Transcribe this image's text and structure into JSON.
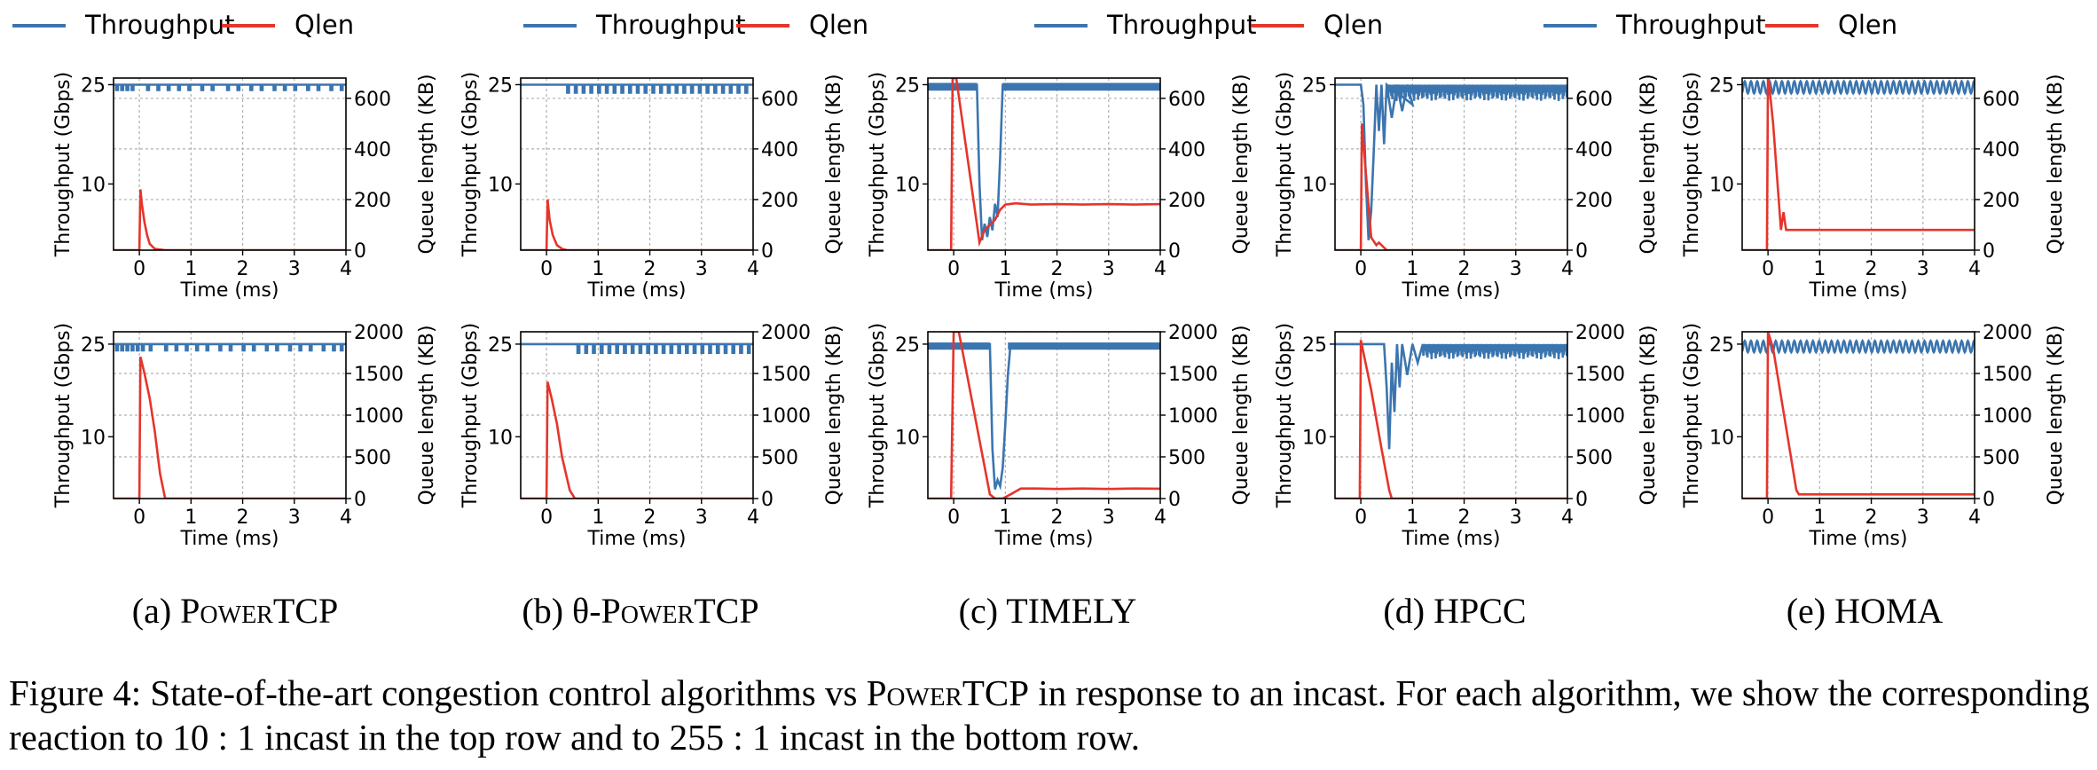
{
  "legend": {
    "items": [
      {
        "label": "Throughput",
        "color": "#3b75af"
      },
      {
        "label": "Qlen",
        "color": "#e5352b"
      },
      {
        "label": "Throughput",
        "color": "#3b75af"
      },
      {
        "label": "Qlen",
        "color": "#e5352b"
      },
      {
        "label": "Throughput",
        "color": "#3b75af"
      },
      {
        "label": "Qlen",
        "color": "#e5352b"
      },
      {
        "label": "Throughput",
        "color": "#3b75af"
      },
      {
        "label": "Qlen",
        "color": "#e5352b"
      }
    ]
  },
  "subcaptions": [
    {
      "prefix": "(a) ",
      "smallcaps": "PowerTCP",
      "suffix": ""
    },
    {
      "prefix": "(b) θ-",
      "smallcaps": "PowerTCP",
      "suffix": ""
    },
    {
      "prefix": "(c) TIMELY",
      "smallcaps": "",
      "suffix": ""
    },
    {
      "prefix": "(d) HPCC",
      "smallcaps": "",
      "suffix": ""
    },
    {
      "prefix": "(e) HOMA",
      "smallcaps": "",
      "suffix": ""
    }
  ],
  "caption": {
    "part1": "Figure 4: State-of-the-art congestion control algorithms vs ",
    "smallcaps": "PowerTCP",
    "part2": " in response to an incast. For each algorithm, we show the corresponding reaction to 10 : 1 incast in the top row and to 255 : 1 incast in the bottom row."
  },
  "axes_text": {
    "xlabel": "Time (ms)",
    "ylabel_left": "Throughput (Gbps)",
    "ylabel_right": "Queue length (KB)"
  },
  "colors": {
    "throughput": "#3b75af",
    "qlen": "#e5352b",
    "grid": "#b0b0b0"
  },
  "chart_data": [
    {
      "type": "line",
      "algorithm": "PowerTCP",
      "row": "top",
      "incast": "10:1",
      "xlabel": "Time (ms)",
      "ylabel_left": "Throughput (Gbps)",
      "ylabel_right": "Queue length (KB)",
      "xlim": [
        -0.5,
        4
      ],
      "xticks": [
        0,
        1,
        2,
        3,
        4
      ],
      "ylim_left": [
        0,
        26
      ],
      "yticks_left": [
        10,
        25
      ],
      "ylim_right": [
        0,
        680
      ],
      "yticks_right": [
        0,
        200,
        400,
        600
      ],
      "grid": true,
      "throughput": {
        "pattern": "flat-dips",
        "x": [
          -0.5,
          4
        ],
        "base": 25,
        "low": 24.2,
        "dip_x": [
          -0.45,
          -0.35,
          -0.25,
          -0.15,
          0.15,
          0.35,
          0.55,
          0.75,
          0.95,
          1.2,
          1.4,
          1.7,
          1.9,
          2.15,
          2.35,
          2.6,
          2.8,
          3.0,
          3.25,
          3.45,
          3.7,
          3.9
        ]
      },
      "qlen": {
        "x": [
          -0.5,
          0,
          0.02,
          0.05,
          0.1,
          0.15,
          0.2,
          0.3,
          0.5,
          4
        ],
        "y": [
          0,
          0,
          240,
          180,
          110,
          60,
          25,
          5,
          0,
          0
        ]
      }
    },
    {
      "type": "line",
      "algorithm": "θ-PowerTCP",
      "row": "top",
      "incast": "10:1",
      "xlabel": "Time (ms)",
      "ylabel_left": "Throughput (Gbps)",
      "ylabel_right": "Queue length (KB)",
      "xlim": [
        -0.5,
        4
      ],
      "xticks": [
        0,
        1,
        2,
        3,
        4
      ],
      "ylim_left": [
        0,
        26
      ],
      "yticks_left": [
        10,
        25
      ],
      "ylim_right": [
        0,
        680
      ],
      "yticks_right": [
        0,
        200,
        400,
        600
      ],
      "grid": true,
      "throughput": {
        "pattern": "flat-dips",
        "x": [
          -0.5,
          4
        ],
        "base": 25,
        "low": 23.8,
        "dip_x": [
          0.4,
          0.55,
          0.7,
          0.85,
          1.0,
          1.15,
          1.3,
          1.45,
          1.6,
          1.75,
          1.9,
          2.05,
          2.2,
          2.35,
          2.5,
          2.65,
          2.8,
          2.95,
          3.1,
          3.25,
          3.4,
          3.55,
          3.7,
          3.85
        ]
      },
      "qlen": {
        "x": [
          -0.5,
          0,
          0.02,
          0.06,
          0.12,
          0.2,
          0.3,
          0.4,
          4
        ],
        "y": [
          0,
          0,
          200,
          120,
          60,
          20,
          5,
          0,
          0
        ]
      }
    },
    {
      "type": "line",
      "algorithm": "TIMELY",
      "row": "top",
      "incast": "10:1",
      "xlabel": "Time (ms)",
      "ylabel_left": "Throughput (Gbps)",
      "ylabel_right": "Queue length (KB)",
      "xlim": [
        -0.5,
        4
      ],
      "xticks": [
        0,
        1,
        2,
        3,
        4
      ],
      "ylim_left": [
        0,
        26
      ],
      "yticks_left": [
        10,
        25
      ],
      "ylim_right": [
        0,
        680
      ],
      "yticks_right": [
        0,
        200,
        400,
        600
      ],
      "grid": true,
      "throughput": {
        "pattern": "band",
        "x": [
          -0.5,
          0.45,
          0.5,
          0.55,
          0.6,
          0.65,
          0.7,
          0.75,
          0.8,
          0.85,
          0.9,
          0.95,
          1.0,
          4
        ],
        "y": [
          25,
          25,
          10,
          1.5,
          4,
          2,
          5,
          3,
          7,
          5,
          14,
          25,
          25,
          25
        ],
        "band": 0.9
      },
      "qlen": {
        "x": [
          -0.5,
          -0.05,
          -0.02,
          0.0,
          0.05,
          0.5,
          0.6,
          0.7,
          0.8,
          0.9,
          1.0,
          1.2,
          1.5,
          2,
          2.5,
          3,
          3.5,
          4
        ],
        "y": [
          0,
          0,
          680,
          680,
          680,
          30,
          80,
          100,
          120,
          160,
          180,
          185,
          180,
          182,
          180,
          182,
          180,
          182
        ]
      }
    },
    {
      "type": "line",
      "algorithm": "HPCC",
      "row": "top",
      "incast": "10:1",
      "xlabel": "Time (ms)",
      "ylabel_left": "Throughput (Gbps)",
      "ylabel_right": "Queue length (KB)",
      "xlim": [
        -0.5,
        4
      ],
      "xticks": [
        0,
        1,
        2,
        3,
        4
      ],
      "ylim_left": [
        0,
        26
      ],
      "yticks_left": [
        10,
        25
      ],
      "ylim_right": [
        0,
        680
      ],
      "yticks_right": [
        0,
        200,
        400,
        600
      ],
      "grid": true,
      "throughput": {
        "pattern": "oscillating",
        "x": [
          -0.5,
          0.0,
          0.05,
          0.1,
          0.15,
          0.2,
          0.25,
          0.3,
          0.35,
          0.4,
          0.45,
          0.5,
          0.6,
          0.7,
          0.8,
          0.9,
          1.0,
          4
        ],
        "y": [
          25,
          25,
          22,
          10,
          1.5,
          6,
          15,
          25,
          18,
          25,
          16,
          25,
          20,
          25,
          21,
          25,
          22,
          25
        ],
        "osc_low": 22.5,
        "osc_high": 25,
        "osc_from": 0.5
      },
      "qlen": {
        "x": [
          -0.5,
          0,
          0.02,
          0.1,
          0.2,
          0.3,
          0.35,
          0.5,
          4
        ],
        "y": [
          0,
          0,
          500,
          300,
          50,
          20,
          30,
          0,
          0
        ]
      }
    },
    {
      "type": "line",
      "algorithm": "HOMA",
      "row": "top",
      "incast": "10:1",
      "xlabel": "Time (ms)",
      "ylabel_left": "Throughput (Gbps)",
      "ylabel_right": "Queue length (KB)",
      "xlim": [
        -0.5,
        4
      ],
      "xticks": [
        0,
        1,
        2,
        3,
        4
      ],
      "ylim_left": [
        0,
        26
      ],
      "yticks_left": [
        10,
        25
      ],
      "ylim_right": [
        0,
        680
      ],
      "yticks_right": [
        0,
        200,
        400,
        600
      ],
      "grid": true,
      "throughput": {
        "pattern": "sine",
        "x": [
          -0.5,
          4
        ],
        "base": 24.6,
        "amp": 0.9,
        "period": 0.12
      },
      "qlen": {
        "x": [
          -0.5,
          -0.02,
          0.0,
          0.1,
          0.25,
          0.3,
          0.35,
          0.4,
          4
        ],
        "y": [
          0,
          0,
          700,
          500,
          80,
          150,
          80,
          80,
          80
        ]
      }
    },
    {
      "type": "line",
      "algorithm": "PowerTCP",
      "row": "bottom",
      "incast": "255:1",
      "xlabel": "Time (ms)",
      "ylabel_left": "Throughput (Gbps)",
      "ylabel_right": "Queue length (KB)",
      "xlim": [
        -0.5,
        4
      ],
      "xticks": [
        0,
        1,
        2,
        3,
        4
      ],
      "ylim_left": [
        0,
        27
      ],
      "yticks_left": [
        10,
        25
      ],
      "ylim_right": [
        0,
        2000
      ],
      "yticks_right": [
        0,
        500,
        1000,
        1500,
        2000
      ],
      "grid": true,
      "throughput": {
        "pattern": "flat-dips",
        "x": [
          -0.5,
          4
        ],
        "base": 25,
        "low": 24.0,
        "dip_x": [
          -0.45,
          -0.35,
          -0.25,
          -0.15,
          -0.05,
          0.05,
          0.2,
          0.5,
          0.7,
          0.9,
          1.1,
          1.3,
          1.55,
          1.75,
          2.0,
          2.2,
          2.45,
          2.65,
          2.9,
          3.1,
          3.3,
          3.55,
          3.75,
          3.9
        ]
      },
      "qlen": {
        "x": [
          -0.5,
          0.0,
          0.02,
          0.1,
          0.2,
          0.3,
          0.4,
          0.5,
          4
        ],
        "y": [
          0,
          0,
          1700,
          1500,
          1200,
          800,
          300,
          0,
          0
        ]
      }
    },
    {
      "type": "line",
      "algorithm": "θ-PowerTCP",
      "row": "bottom",
      "incast": "255:1",
      "xlabel": "Time (ms)",
      "ylabel_left": "Throughput (Gbps)",
      "ylabel_right": "Queue length (KB)",
      "xlim": [
        -0.5,
        4
      ],
      "xticks": [
        0,
        1,
        2,
        3,
        4
      ],
      "ylim_left": [
        0,
        27
      ],
      "yticks_left": [
        10,
        25
      ],
      "ylim_right": [
        0,
        2000
      ],
      "yticks_right": [
        0,
        500,
        1000,
        1500,
        2000
      ],
      "grid": true,
      "throughput": {
        "pattern": "flat-dips",
        "x": [
          -0.5,
          4
        ],
        "base": 25,
        "low": 23.6,
        "dip_x": [
          0.6,
          0.75,
          0.9,
          1.05,
          1.2,
          1.35,
          1.5,
          1.65,
          1.8,
          1.95,
          2.1,
          2.25,
          2.4,
          2.55,
          2.7,
          2.85,
          3.0,
          3.15,
          3.3,
          3.45,
          3.6,
          3.75,
          3.9
        ]
      },
      "qlen": {
        "x": [
          -0.5,
          0.0,
          0.02,
          0.1,
          0.2,
          0.3,
          0.45,
          0.55,
          4
        ],
        "y": [
          0,
          0,
          1400,
          1200,
          900,
          500,
          100,
          0,
          0
        ]
      }
    },
    {
      "type": "line",
      "algorithm": "TIMELY",
      "row": "bottom",
      "incast": "255:1",
      "xlabel": "Time (ms)",
      "ylabel_left": "Throughput (Gbps)",
      "ylabel_right": "Queue length (KB)",
      "xlim": [
        -0.5,
        4
      ],
      "xticks": [
        0,
        1,
        2,
        3,
        4
      ],
      "ylim_left": [
        0,
        27
      ],
      "yticks_left": [
        10,
        25
      ],
      "ylim_right": [
        0,
        2000
      ],
      "yticks_right": [
        0,
        500,
        1000,
        1500,
        2000
      ],
      "grid": true,
      "throughput": {
        "pattern": "band",
        "x": [
          -0.5,
          0.7,
          0.75,
          0.8,
          0.85,
          0.9,
          0.95,
          1.0,
          1.05,
          1.1,
          4
        ],
        "y": [
          25,
          25,
          8,
          1.5,
          3,
          2,
          5,
          12,
          20,
          25,
          25
        ],
        "band": 0.9
      },
      "qlen": {
        "x": [
          -0.5,
          -0.05,
          0.0,
          0.1,
          0.7,
          0.8,
          0.95,
          1.1,
          1.3,
          1.6,
          2,
          2.5,
          3,
          3.5,
          4
        ],
        "y": [
          0,
          0,
          2000,
          2000,
          50,
          0,
          0,
          50,
          120,
          120,
          115,
          120,
          115,
          120,
          118
        ]
      }
    },
    {
      "type": "line",
      "algorithm": "HPCC",
      "row": "bottom",
      "incast": "255:1",
      "xlabel": "Time (ms)",
      "ylabel_left": "Throughput (Gbps)",
      "ylabel_right": "Queue length (KB)",
      "xlim": [
        -0.5,
        4
      ],
      "xticks": [
        0,
        1,
        2,
        3,
        4
      ],
      "ylim_left": [
        0,
        27
      ],
      "yticks_left": [
        10,
        25
      ],
      "ylim_right": [
        0,
        2000
      ],
      "yticks_right": [
        0,
        500,
        1000,
        1500,
        2000
      ],
      "grid": true,
      "throughput": {
        "pattern": "oscillating",
        "x": [
          -0.5,
          0.45,
          0.5,
          0.55,
          0.6,
          0.65,
          0.7,
          0.75,
          0.8,
          0.9,
          1.0,
          1.1,
          1.2,
          4
        ],
        "y": [
          25,
          25,
          18,
          8,
          22,
          14,
          25,
          18,
          25,
          20,
          25,
          22,
          25,
          25
        ],
        "osc_low": 22.5,
        "osc_high": 25,
        "osc_from": 1.2
      },
      "qlen": {
        "x": [
          -0.5,
          -0.02,
          0.0,
          0.2,
          0.4,
          0.55,
          0.6,
          4
        ],
        "y": [
          0,
          0,
          1900,
          1300,
          600,
          100,
          0,
          0
        ]
      }
    },
    {
      "type": "line",
      "algorithm": "HOMA",
      "row": "bottom",
      "incast": "255:1",
      "xlabel": "Time (ms)",
      "ylabel_left": "Throughput (Gbps)",
      "ylabel_right": "Queue length (KB)",
      "xlim": [
        -0.5,
        4
      ],
      "xticks": [
        0,
        1,
        2,
        3,
        4
      ],
      "ylim_left": [
        0,
        27
      ],
      "yticks_left": [
        10,
        25
      ],
      "ylim_right": [
        0,
        2000
      ],
      "yticks_right": [
        0,
        500,
        1000,
        1500,
        2000
      ],
      "grid": true,
      "throughput": {
        "pattern": "sine",
        "x": [
          -0.5,
          4
        ],
        "base": 24.6,
        "amp": 0.9,
        "period": 0.12
      },
      "qlen": {
        "x": [
          -0.5,
          -0.02,
          0.0,
          0.1,
          0.55,
          0.6,
          4
        ],
        "y": [
          0,
          0,
          2000,
          1800,
          100,
          50,
          50
        ]
      }
    }
  ]
}
